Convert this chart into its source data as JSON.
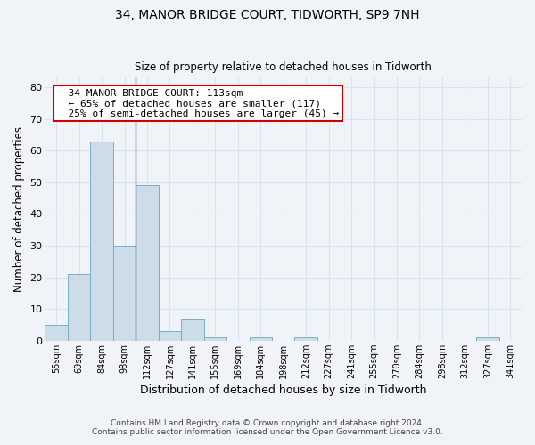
{
  "title1": "34, MANOR BRIDGE COURT, TIDWORTH, SP9 7NH",
  "title2": "Size of property relative to detached houses in Tidworth",
  "xlabel": "Distribution of detached houses by size in Tidworth",
  "ylabel": "Number of detached properties",
  "footnote1": "Contains HM Land Registry data © Crown copyright and database right 2024.",
  "footnote2": "Contains public sector information licensed under the Open Government Licence v3.0.",
  "annotation_line1": "34 MANOR BRIDGE COURT: 113sqm",
  "annotation_line2": "← 65% of detached houses are smaller (117)",
  "annotation_line3": "25% of semi-detached houses are larger (45) →",
  "bar_color": "#ccdce8",
  "bar_edge_color": "#7aafc8",
  "vline_color": "#4a4aaa",
  "categories": [
    "55sqm",
    "69sqm",
    "84sqm",
    "98sqm",
    "112sqm",
    "127sqm",
    "141sqm",
    "155sqm",
    "169sqm",
    "184sqm",
    "198sqm",
    "212sqm",
    "227sqm",
    "241sqm",
    "255sqm",
    "270sqm",
    "284sqm",
    "298sqm",
    "312sqm",
    "327sqm",
    "341sqm"
  ],
  "values": [
    5,
    21,
    63,
    30,
    49,
    3,
    7,
    1,
    0,
    1,
    0,
    1,
    0,
    0,
    0,
    0,
    0,
    0,
    0,
    1,
    0
  ],
  "vline_index": 4,
  "ylim": [
    0,
    83
  ],
  "yticks": [
    0,
    10,
    20,
    30,
    40,
    50,
    60,
    70,
    80
  ],
  "bg_color": "#f0f4f8",
  "plot_bg_color": "#f0f4f8",
  "grid_color": "#d8e4ee",
  "annotation_box_color": "#ffffff",
  "annotation_box_edge": "#cc0000"
}
